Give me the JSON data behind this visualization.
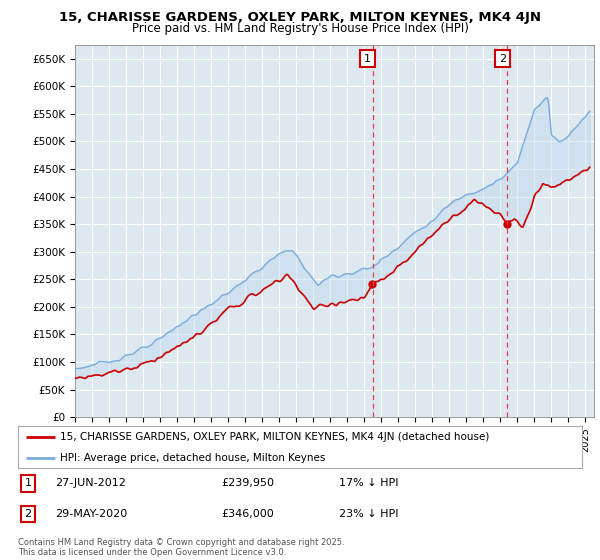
{
  "title": "15, CHARISSE GARDENS, OXLEY PARK, MILTON KEYNES, MK4 4JN",
  "subtitle": "Price paid vs. HM Land Registry's House Price Index (HPI)",
  "ylabel_ticks": [
    "£0",
    "£50K",
    "£100K",
    "£150K",
    "£200K",
    "£250K",
    "£300K",
    "£350K",
    "£400K",
    "£450K",
    "£500K",
    "£550K",
    "£600K",
    "£650K"
  ],
  "ytick_values": [
    0,
    50000,
    100000,
    150000,
    200000,
    250000,
    300000,
    350000,
    400000,
    450000,
    500000,
    550000,
    600000,
    650000
  ],
  "ylim": [
    0,
    675000
  ],
  "xlim_start": 1995.0,
  "xlim_end": 2025.5,
  "purchase1_date": 2012.49,
  "purchase1_price": 239950,
  "purchase1_label": "1",
  "purchase2_date": 2020.41,
  "purchase2_price": 346000,
  "purchase2_label": "2",
  "legend_property": "15, CHARISSE GARDENS, OXLEY PARK, MILTON KEYNES, MK4 4JN (detached house)",
  "legend_hpi": "HPI: Average price, detached house, Milton Keynes",
  "footnote": "Contains HM Land Registry data © Crown copyright and database right 2025.\nThis data is licensed under the Open Government Licence v3.0.",
  "hpi_color": "#7aaddb",
  "price_color": "#cc0000",
  "vline_color": "#dd4444",
  "grid_color": "#c8c8c8",
  "bg_color": "#dde8f0",
  "annotation_box_color": "#cc0000",
  "fill_color": "#c0d8ee",
  "xtick_years": [
    1995,
    1996,
    1997,
    1998,
    1999,
    2000,
    2001,
    2002,
    2003,
    2004,
    2005,
    2006,
    2007,
    2008,
    2009,
    2010,
    2011,
    2012,
    2013,
    2014,
    2015,
    2016,
    2017,
    2018,
    2019,
    2020,
    2021,
    2022,
    2023,
    2024,
    2025
  ]
}
